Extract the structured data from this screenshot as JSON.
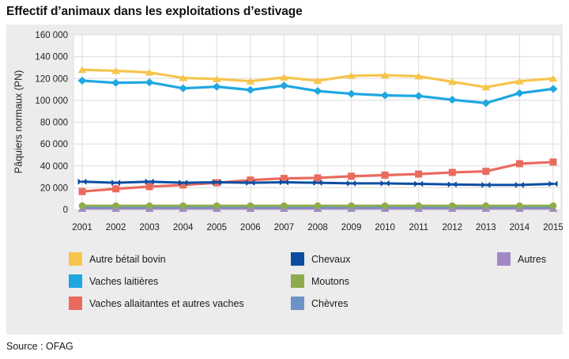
{
  "page": {
    "title": "Effectif d’animaux dans les exploitations d’estivage",
    "source": "Source : OFAG"
  },
  "chart_data": {
    "type": "line",
    "title": "Effectif d’animaux dans les exploitations d’estivage",
    "xlabel": "",
    "ylabel": "Pâquiers normaux (PN)",
    "ylim": [
      0,
      160000
    ],
    "ytick_step": 20000,
    "ytick_labels_top_down": [
      "160 000",
      "140 000",
      "120 000",
      "100 000",
      "80 000",
      "60 000",
      "40 000",
      "20 000",
      "0"
    ],
    "grid": true,
    "legend_position": "bottom",
    "categories": [
      "2001",
      "2002",
      "2003",
      "2004",
      "2005",
      "2006",
      "2007",
      "2008",
      "2009",
      "2010",
      "2011",
      "2012",
      "2013",
      "2014",
      "2015"
    ],
    "series": [
      {
        "name": "Autre bétail bovin",
        "color": "#F7C44D",
        "marker": "triangle",
        "line_width": 3.2,
        "values": [
          128000,
          127000,
          125500,
          120500,
          119500,
          117500,
          121000,
          118000,
          122500,
          123000,
          122000,
          117000,
          112000,
          117500,
          120000
        ]
      },
      {
        "name": "Vaches laitières",
        "color": "#1FA7E1",
        "marker": "diamond",
        "line_width": 3.2,
        "values": [
          118000,
          116000,
          116500,
          111000,
          112500,
          109500,
          113500,
          108500,
          106000,
          104500,
          104000,
          100500,
          97500,
          106500,
          110500
        ]
      },
      {
        "name": "Vaches allaitantes et autres vaches",
        "color": "#E96B5E",
        "marker": "square",
        "line_width": 3.2,
        "values": [
          16500,
          19000,
          21000,
          22500,
          24500,
          27000,
          28500,
          29000,
          30500,
          31500,
          32500,
          34000,
          35000,
          42000,
          43500
        ]
      },
      {
        "name": "Chevaux",
        "color": "#0C4DA2",
        "marker": "bowtie",
        "line_width": 3.0,
        "values": [
          25500,
          24500,
          25500,
          24500,
          25000,
          24500,
          25000,
          24500,
          24000,
          24000,
          23500,
          23000,
          22500,
          22500,
          23500
        ]
      },
      {
        "name": "Moutons",
        "color": "#8EAC4B",
        "marker": "circle",
        "line_width": 2.8,
        "values": [
          3500,
          3500,
          3500,
          3500,
          3500,
          3500,
          3500,
          3500,
          3500,
          3500,
          3500,
          3500,
          3500,
          3500,
          3500
        ]
      },
      {
        "name": "Chèvres",
        "color": "#6D92C8",
        "marker": "none",
        "line_width": 2.2,
        "values": [
          2000,
          2000,
          2000,
          2000,
          2000,
          2000,
          2000,
          2000,
          2000,
          2000,
          2000,
          2000,
          2000,
          2000,
          2000
        ]
      },
      {
        "name": "Autres",
        "color": "#A289C4",
        "marker": "triangle",
        "line_width": 2.6,
        "values": [
          800,
          800,
          800,
          800,
          800,
          800,
          800,
          800,
          800,
          800,
          800,
          800,
          800,
          800,
          800
        ]
      }
    ],
    "legend_columns": [
      [
        0,
        1,
        2
      ],
      [
        3,
        4,
        5
      ],
      [
        6
      ]
    ],
    "draw_order": [
      6,
      5,
      4,
      2,
      3,
      1,
      0
    ],
    "colors": {
      "panel_background": "#ececec",
      "plot_background": "#ffffff",
      "gridline": "#e2e2e2",
      "text": "#222222"
    }
  }
}
